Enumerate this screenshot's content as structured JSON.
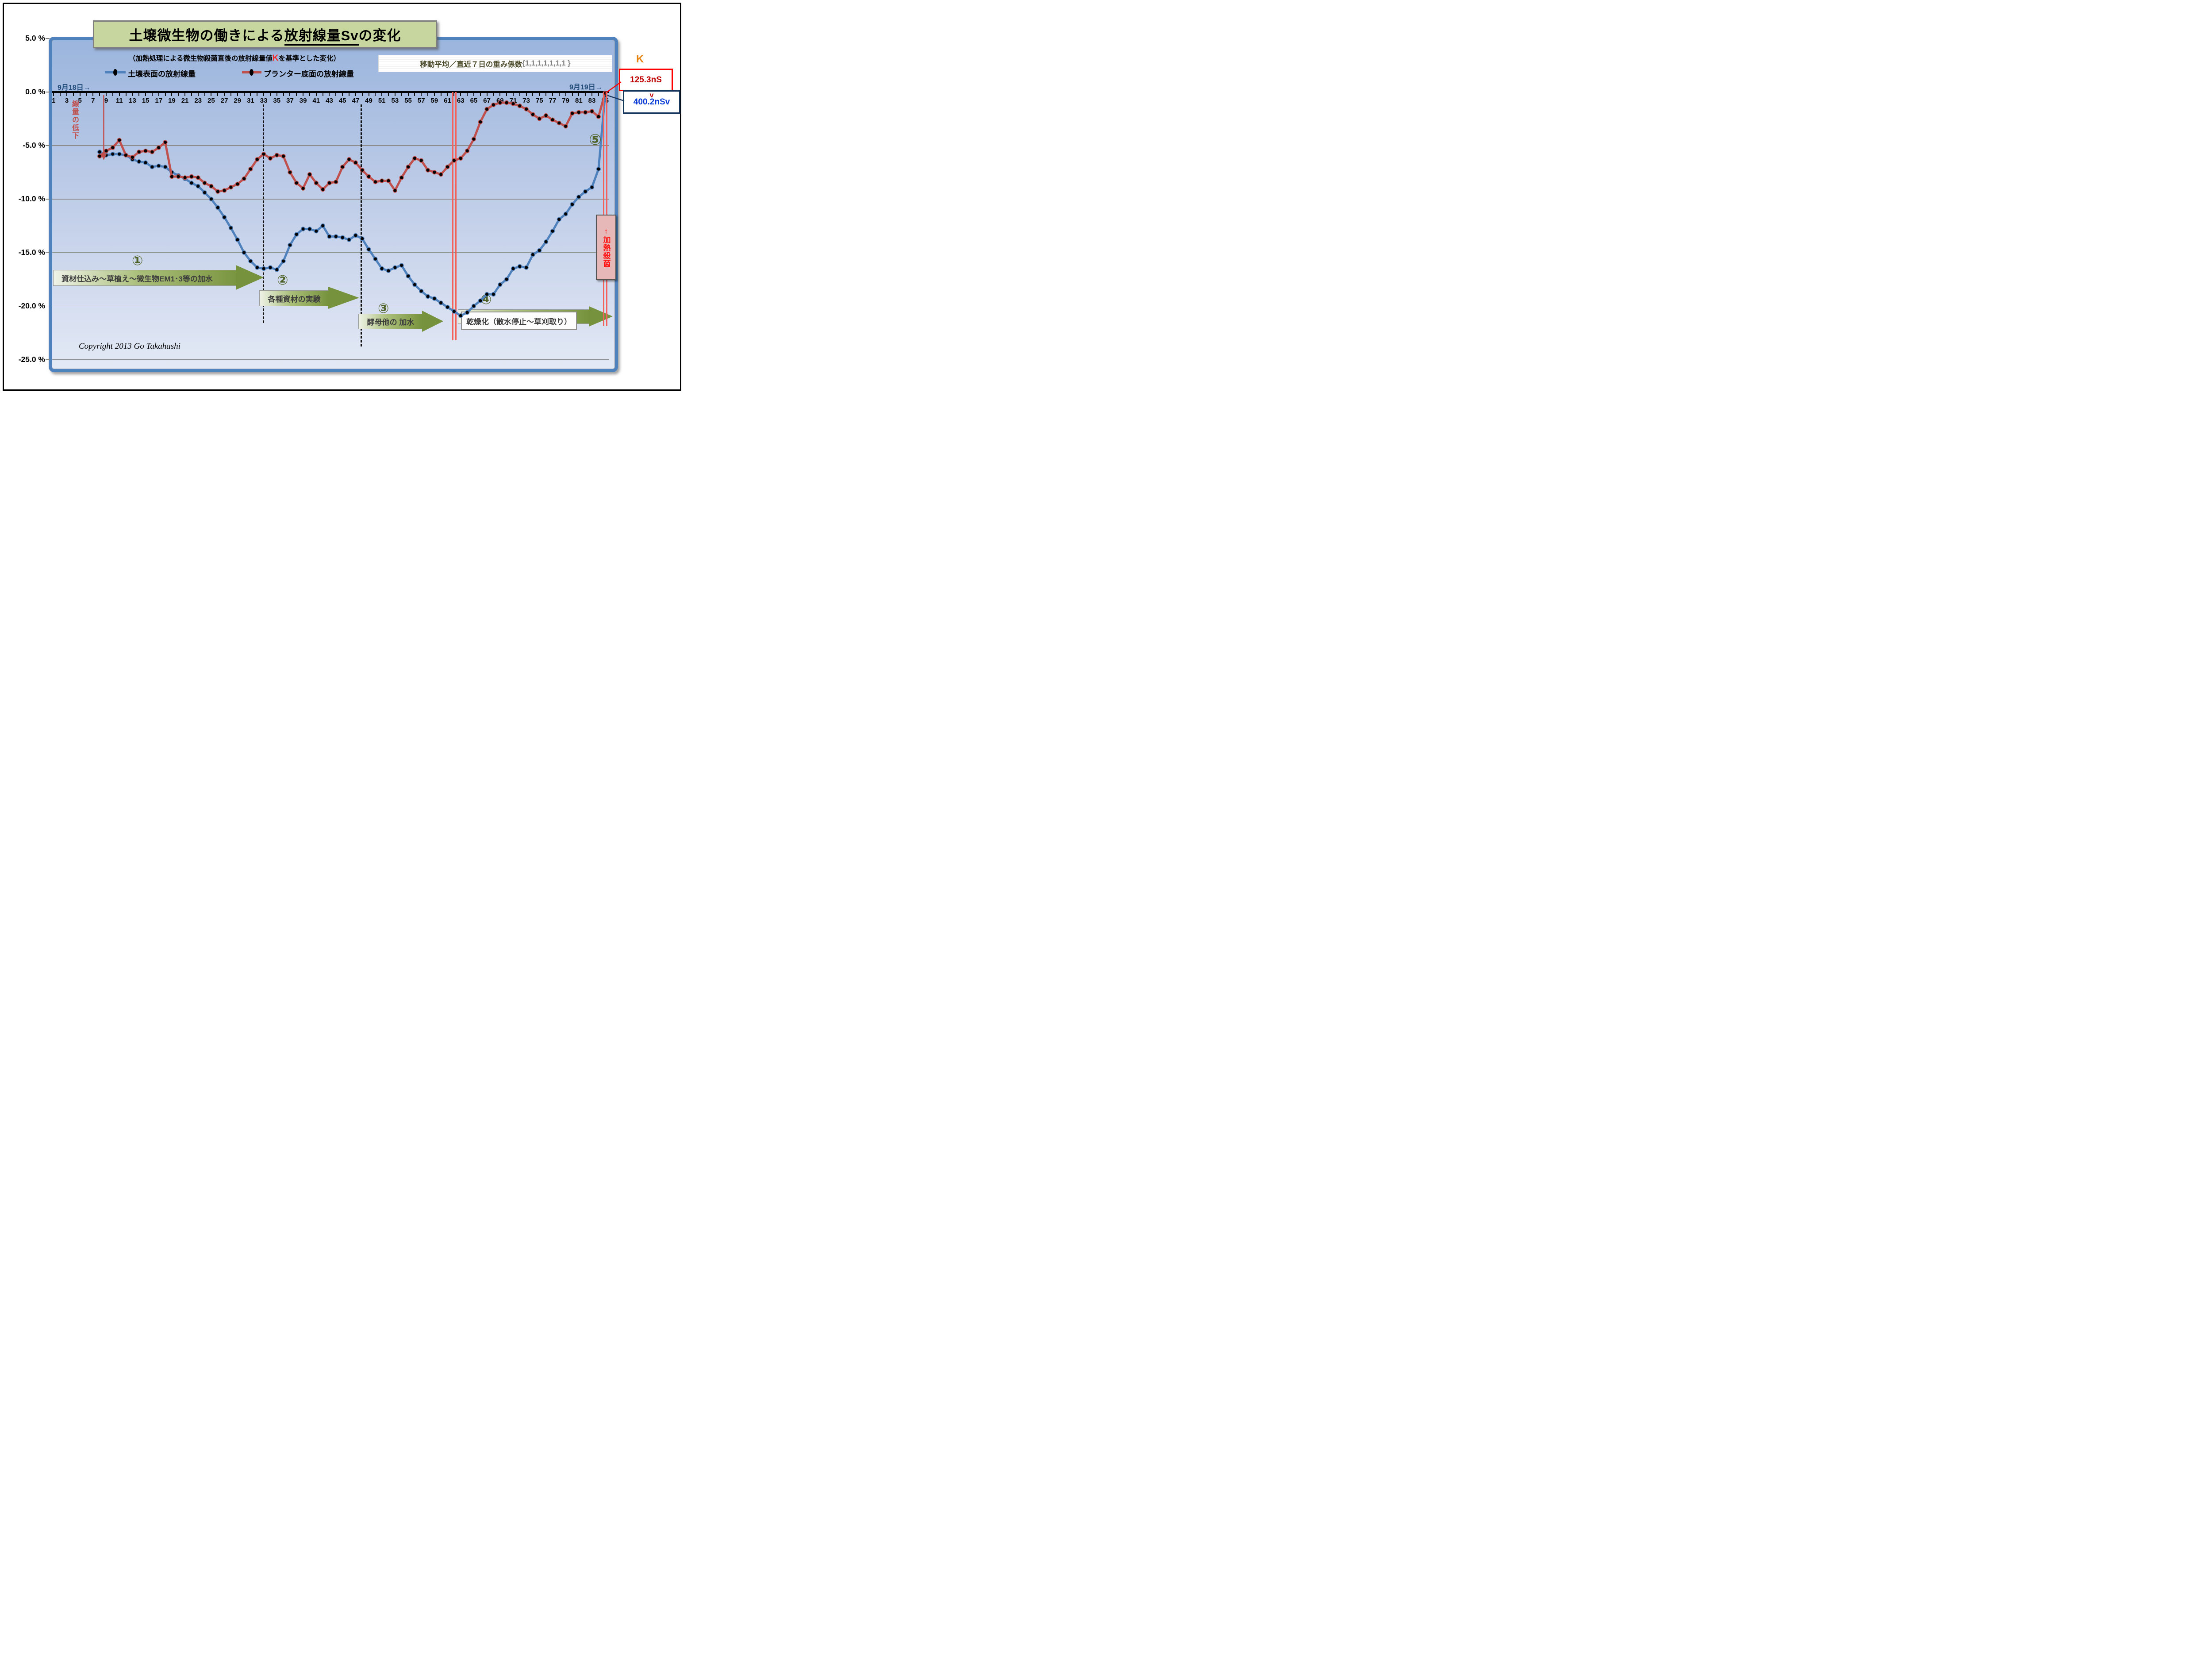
{
  "title": {
    "pre": "土壌微生物の働きによる",
    "underlined": "放射線量Sv",
    "post": "の変化"
  },
  "subtitle": {
    "pre": "（加熱処理による微生物殺菌直後の放射線量値",
    "k": "K",
    "post": "を基準とした変化）"
  },
  "legend": [
    {
      "label": "土壌表面の放射線量",
      "color": "#4f81bd"
    },
    {
      "label": "プランター底面の放射線量",
      "color": "#c0504d"
    }
  ],
  "moving_average_box": {
    "text": "移動平均／直近７日の重み係数",
    "weights": "{1,1,1,1,1,1,1 }"
  },
  "dates": {
    "start": "9月18日→",
    "end": "9月19日→"
  },
  "k_callout": {
    "letter": "K",
    "k_value": "125.3nS",
    "v_letter": "v",
    "v_value": "400.2nSv"
  },
  "senryo_label": "線量の低下",
  "heat_label": "↑加熱殺菌",
  "steps": [
    {
      "num": "①",
      "label": "資材仕込み～草植え～微生物EM1･3等の加水"
    },
    {
      "num": "②",
      "label": "各種資材の実験"
    },
    {
      "num": "③",
      "label": "酵母他の 加水"
    },
    {
      "num": "④",
      "label": "乾燥化（散水停止～草刈取り）"
    },
    {
      "num": "⑤",
      "label": ""
    }
  ],
  "copyright": "Copyright 2013 Go Takahashi",
  "chart_data": {
    "type": "line",
    "title": "土壌微生物の働きによる放射線量Svの変化",
    "xlabel": "",
    "ylabel": "",
    "x_range": [
      1,
      85
    ],
    "ylim": [
      -25.5,
      5
    ],
    "grid": true,
    "y_ticks": [
      {
        "p": 5,
        "label": "5.0 %"
      },
      {
        "p": 0,
        "label": "0.0 %"
      },
      {
        "p": -5,
        "label": "-5.0 %"
      },
      {
        "p": -10,
        "label": "-10.0 %"
      },
      {
        "p": -15,
        "label": "-15.0 %"
      },
      {
        "p": -20,
        "label": "-20.0 %"
      },
      {
        "p": -25,
        "label": "-25.0 %"
      }
    ],
    "x_tick_labels": [
      1,
      3,
      5,
      7,
      9,
      11,
      13,
      15,
      17,
      19,
      21,
      23,
      25,
      27,
      29,
      31,
      33,
      35,
      37,
      39,
      41,
      43,
      45,
      47,
      49,
      51,
      53,
      55,
      57,
      59,
      61,
      63,
      65,
      67,
      69,
      71,
      73,
      75,
      77,
      79,
      81,
      83,
      85
    ],
    "legend_position": "top-left",
    "series": [
      {
        "name": "土壌表面の放射線量",
        "color": "#4f81bd",
        "x_start": 8,
        "values": [
          -5.6,
          -5.9,
          -5.8,
          -5.8,
          -5.9,
          -6.3,
          -6.5,
          -6.6,
          -7.0,
          -6.9,
          -7.0,
          -7.5,
          -7.8,
          -8.1,
          -8.5,
          -8.8,
          -9.4,
          -10.0,
          -10.8,
          -11.7,
          -12.7,
          -13.8,
          -15.0,
          -15.8,
          -16.4,
          -16.5,
          -16.4,
          -16.6,
          -15.8,
          -14.3,
          -13.3,
          -12.8,
          -12.8,
          -13.0,
          -12.5,
          -13.5,
          -13.5,
          -13.6,
          -13.8,
          -13.4,
          -13.7,
          -14.7,
          -15.6,
          -16.5,
          -16.7,
          -16.4,
          -16.2,
          -17.2,
          -18.0,
          -18.6,
          -19.1,
          -19.3,
          -19.7,
          -20.1,
          -20.5,
          -20.9,
          -20.6,
          -20.0,
          -19.5,
          -18.9,
          -18.9,
          -18.0,
          -17.5,
          -16.5,
          -16.3,
          -16.4,
          -15.2,
          -14.8,
          -14.0,
          -13.0,
          -11.9,
          -11.4,
          -10.5,
          -9.8,
          -9.3,
          -8.9,
          -7.2,
          -0.3
        ]
      },
      {
        "name": "プランター底面の放射線量",
        "color": "#c0504d",
        "x_start": 8,
        "values": [
          -6.0,
          -5.5,
          -5.2,
          -4.5,
          -5.9,
          -6.1,
          -5.6,
          -5.5,
          -5.6,
          -5.2,
          -4.7,
          -7.9,
          -7.9,
          -8.0,
          -7.9,
          -8.0,
          -8.5,
          -8.8,
          -9.3,
          -9.2,
          -8.9,
          -8.6,
          -8.1,
          -7.2,
          -6.3,
          -5.8,
          -6.2,
          -5.9,
          -6.0,
          -7.5,
          -8.5,
          -9.0,
          -7.7,
          -8.5,
          -9.1,
          -8.5,
          -8.4,
          -7.0,
          -6.3,
          -6.6,
          -7.3,
          -7.9,
          -8.4,
          -8.3,
          -8.3,
          -9.2,
          -8.0,
          -7.0,
          -6.2,
          -6.4,
          -7.3,
          -7.5,
          -7.7,
          -7.0,
          -6.4,
          -6.2,
          -5.5,
          -4.4,
          -2.8,
          -1.6,
          -1.2,
          -1.0,
          -1.0,
          -1.1,
          -1.3,
          -1.6,
          -2.1,
          -2.5,
          -2.2,
          -2.6,
          -2.9,
          -3.2,
          -2.0,
          -1.9,
          -1.9,
          -1.8,
          -2.3,
          -0.1
        ]
      }
    ],
    "annotations": {
      "dashed_vlines_x": [
        33,
        48
      ],
      "double_red_vlines_x": [
        62,
        84.8
      ],
      "arrow_down_x": 8.5
    }
  }
}
